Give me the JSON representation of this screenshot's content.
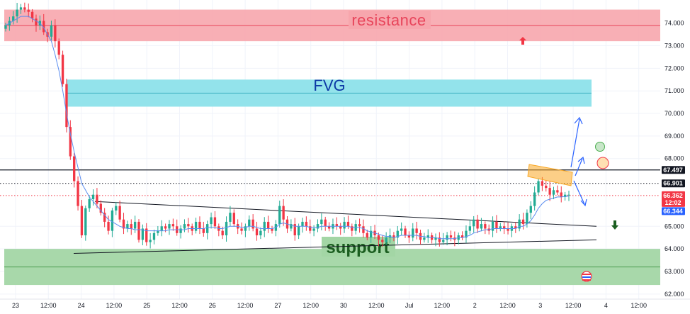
{
  "chart_data": {
    "type": "candlestick",
    "y_axis": {
      "ylim": [
        61.9,
        74.9
      ],
      "ticks": [
        "74.000",
        "73.000",
        "72.000",
        "71.000",
        "70.000",
        "69.000",
        "68.000",
        "65.000",
        "64.000",
        "63.000",
        "62.000"
      ]
    },
    "x_axis": {
      "ticks": [
        "23",
        "12:00",
        "24",
        "12:00",
        "25",
        "12:00",
        "26",
        "12:00",
        "27",
        "12:00",
        "30",
        "12:00",
        "Jul",
        "12:00",
        "2",
        "12:00",
        "3",
        "12:00",
        "4",
        "12:00"
      ]
    },
    "zones": [
      {
        "label": "resistance",
        "from": 73.2,
        "to": 74.6,
        "color": "#f7a6ad"
      },
      {
        "label": "FVG",
        "from": 70.3,
        "to": 71.5,
        "color": "#8de1ea"
      },
      {
        "label": "support",
        "from": 62.4,
        "to": 64.0,
        "color": "#a3d6a5"
      }
    ],
    "horizontal_lines": [
      {
        "value": 67.497,
        "label": "67.497",
        "style": "solid",
        "color": "#131722"
      },
      {
        "value": 66.901,
        "label": "66.901",
        "style": "dotted",
        "color": "#131722"
      },
      {
        "value": 66.362,
        "label": "66.362",
        "sub": "12:02",
        "style": "dotted",
        "color": "#f23645"
      },
      {
        "value": 66.344,
        "label": "66.344",
        "style": "none",
        "color": "#2962ff"
      }
    ],
    "close_series": [
      73.9,
      74.1,
      74.3,
      74.6,
      74.7,
      74.6,
      74.5,
      74.2,
      73.9,
      74.1,
      73.6,
      73.4,
      73.9,
      73.2,
      72.6,
      71.3,
      69.4,
      68.1,
      67.0,
      65.9,
      64.6,
      65.8,
      66.2,
      66.4,
      66.0,
      65.6,
      65.2,
      64.8,
      65.7,
      65.9,
      65.3,
      64.9,
      65.1,
      64.9,
      65.2,
      64.4,
      64.9,
      64.3,
      64.4,
      64.7,
      64.8,
      65.0,
      64.9,
      65.1,
      65.0,
      64.7,
      64.9,
      65.1,
      65.0,
      64.8,
      65.2,
      64.9,
      64.7,
      65.1,
      65.4,
      65.0,
      64.8,
      64.6,
      65.2,
      65.6,
      65.1,
      64.9,
      64.8,
      65.0,
      65.3,
      64.9,
      64.6,
      64.8,
      65.2,
      64.9,
      64.8,
      65.1,
      65.9,
      65.3,
      64.9,
      65.1,
      64.6,
      65.0,
      65.2,
      65.0,
      64.8,
      64.9,
      65.1,
      65.3,
      65.0,
      64.9,
      65.1,
      65.0,
      64.9,
      65.2,
      65.0,
      64.8,
      65.1,
      65.0,
      64.7,
      64.5,
      64.8,
      64.6,
      64.4,
      64.3,
      64.5,
      64.6,
      64.5,
      64.8,
      64.9,
      64.6,
      64.5,
      64.9,
      64.7,
      64.4,
      64.5,
      64.6,
      64.4,
      64.5,
      64.3,
      64.4,
      64.6,
      64.5,
      64.4,
      64.6,
      64.5,
      64.8,
      65.0,
      65.3,
      64.9,
      65.1,
      64.9,
      64.8,
      65.2,
      64.9,
      65.0,
      64.9,
      64.8,
      65.0,
      64.9,
      65.3,
      65.1,
      65.6,
      65.9,
      66.5,
      67.0,
      66.8,
      66.7,
      66.4,
      66.6,
      66.5,
      66.3,
      66.4,
      66.4
    ],
    "ma_series": [
      73.9,
      74.0,
      74.1,
      74.2,
      74.3,
      74.3,
      74.3,
      74.2,
      74.1,
      74.0,
      73.8,
      73.5,
      73.2,
      72.6,
      71.9,
      71.0,
      70.0,
      69.1,
      68.3,
      67.6,
      66.9,
      66.6,
      66.3,
      66.1,
      65.9,
      65.7,
      65.5,
      65.3,
      65.2,
      65.1,
      65.0,
      64.95,
      64.9,
      64.9,
      64.85,
      64.85,
      64.85,
      64.8,
      64.8,
      64.8,
      64.8,
      64.8,
      64.8,
      64.85,
      64.85,
      64.85,
      64.85,
      64.85,
      64.9,
      64.9,
      64.9,
      64.9,
      64.9,
      64.95,
      64.95,
      64.95,
      64.9,
      64.9,
      64.95,
      65.0,
      65.0,
      65.0,
      64.95,
      64.95,
      65.0,
      65.0,
      64.95,
      64.9,
      64.9,
      64.9,
      64.9,
      64.95,
      65.1,
      65.15,
      65.1,
      65.05,
      65.0,
      65.0,
      65.0,
      65.0,
      64.95,
      64.95,
      64.95,
      65.0,
      65.0,
      65.0,
      65.0,
      65.0,
      65.0,
      65.0,
      65.0,
      64.95,
      64.95,
      64.95,
      64.9,
      64.8,
      64.75,
      64.7,
      64.65,
      64.6,
      64.55,
      64.55,
      64.5,
      64.55,
      64.6,
      64.6,
      64.6,
      64.6,
      64.6,
      64.55,
      64.55,
      64.5,
      64.5,
      64.5,
      64.45,
      64.45,
      64.45,
      64.45,
      64.45,
      64.5,
      64.5,
      64.55,
      64.6,
      64.7,
      64.75,
      64.8,
      64.85,
      64.85,
      64.9,
      64.9,
      64.9,
      64.9,
      64.9,
      64.9,
      64.9,
      65.0,
      65.0,
      65.1,
      65.25,
      65.5,
      65.8,
      66.0,
      66.15,
      66.2,
      66.25,
      66.3,
      66.3,
      66.32,
      66.34
    ],
    "annotations": {
      "triangle_upper": {
        "from_value": 66.1,
        "to_value": 65.0
      },
      "triangle_lower": {
        "from_value": 63.8,
        "to_value": 64.4
      },
      "up_arrow_color": "#f23645",
      "down_arrow_color": "#1b5e20",
      "projection_color": "#2962ff",
      "flag_color": "#f9a825",
      "circle_green": "#4caf50",
      "circle_red": "#f23645"
    },
    "colors": {
      "up": "#22ab94",
      "down": "#f23645",
      "ma": "#5b8def",
      "grid": "#f0f3fa"
    }
  }
}
